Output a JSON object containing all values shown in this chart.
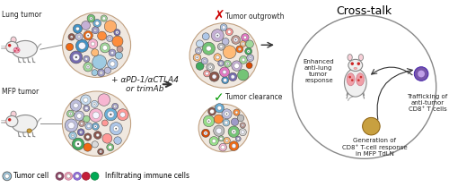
{
  "title": "Cross-talk",
  "bg_color": "#ffffff",
  "labels": {
    "lung_tumor": "Lung tumor",
    "mfp_tumor": "MFP tumor",
    "treatment": "+ αPD-1/αCTLA4\nor trimAb",
    "tumor_outgrowth": "Tumor outgrowth",
    "tumor_clearance": "Tumor clearance",
    "trafficking": "Trafficking of\nanti-tumor\nCD8⁺ T cells",
    "enhanced": "Enhanced\nanti-lung\ntumor\nresponse",
    "generation": "Generation of\nCD8⁺ T-cell response\nin MFP TdLN",
    "legend_tumor": "Tumor cell",
    "legend_immune": "Infiltrating immune cells"
  },
  "cell_colors": [
    "#6baed6",
    "#9ecae1",
    "#c6dbef",
    "#4292c6",
    "#d94801",
    "#f16913",
    "#fd8d3c",
    "#fdae6b",
    "#74c476",
    "#a1d99b",
    "#41ab5d",
    "#9e9ac8",
    "#bcbddc",
    "#756bb1",
    "#e377c2",
    "#f7b6d2",
    "#d9d9d9",
    "#bdbdbd",
    "#8c564b",
    "#c49c94",
    "#aec7e8",
    "#ffbb78",
    "#98df8a",
    "#ff9896",
    "#c5b0d5"
  ],
  "colors": {
    "cluster_bg": "#f0e8e0",
    "cluster_edge": "#c0a080",
    "arrow_color": "#333333",
    "x_mark": "#cc0000",
    "check_mark": "#009900",
    "mouse_body": "#f0f0f0",
    "mouse_edge": "#888888",
    "lung_color": "#f0a0a8",
    "lung_spots": "#cc3333",
    "lymph_node": "#c8a040",
    "t_cell_outer": "#7755aa",
    "t_cell_inner": "#c0a0e8",
    "cross_circle_edge": "#888888"
  },
  "font_sizes": {
    "title": 9,
    "label": 6.5,
    "small": 5.5,
    "tiny": 5
  }
}
